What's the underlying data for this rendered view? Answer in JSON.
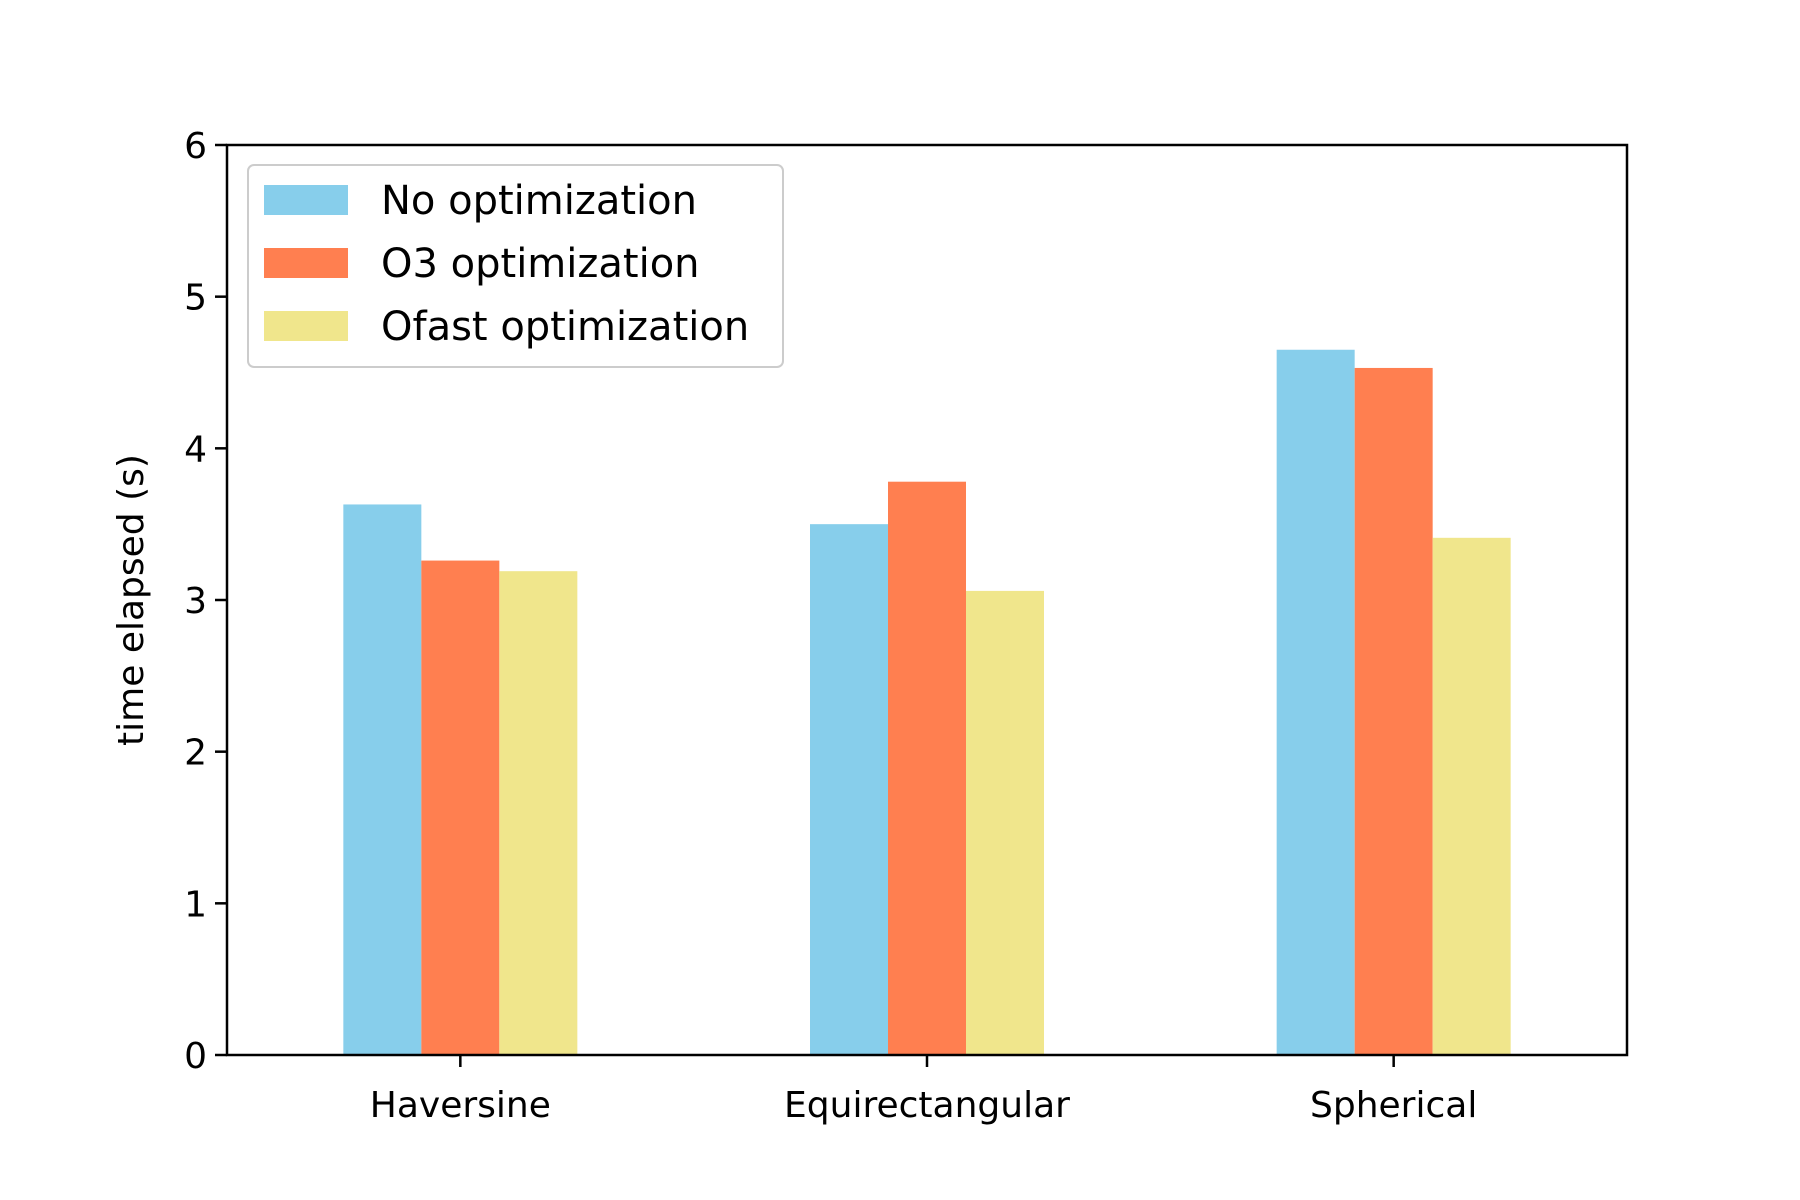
{
  "chart_data": {
    "type": "bar",
    "categories": [
      "Haversine",
      "Equirectangular",
      "Spherical"
    ],
    "series": [
      {
        "name": "No optimization",
        "color": "#87CEEB",
        "values": [
          3.63,
          3.5,
          4.65
        ]
      },
      {
        "name": "O3 optimization",
        "color": "#FF7F50",
        "values": [
          3.26,
          3.78,
          4.53
        ]
      },
      {
        "name": "Ofast optimization",
        "color": "#F0E68C",
        "values": [
          3.19,
          3.06,
          3.41
        ]
      }
    ],
    "title": "",
    "xlabel": "",
    "ylabel": "time elapsed (s)",
    "ylim": [
      0,
      6
    ],
    "yticks": [
      "0",
      "1",
      "2",
      "3",
      "4",
      "5",
      "6"
    ],
    "grid": false,
    "legend_position": "top-left"
  }
}
